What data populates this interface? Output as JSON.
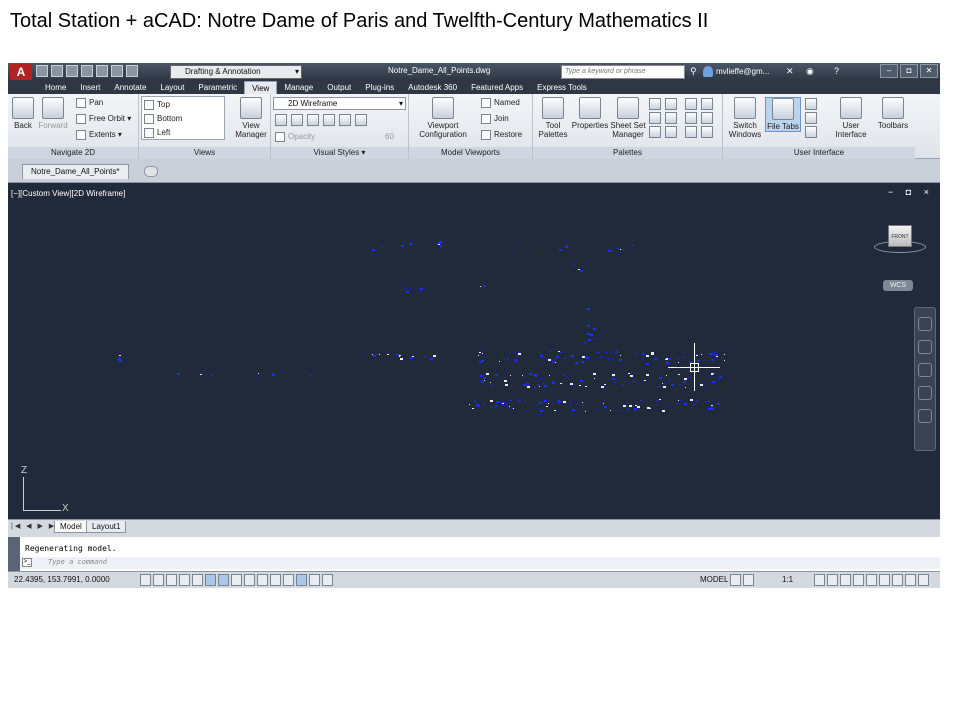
{
  "slide": {
    "title": "Total Station + aCAD: Notre Dame of Paris and Twelfth-Century Mathematics II"
  },
  "app": {
    "logo": "A",
    "workspace": "Drafting & Annotation",
    "document_title": "Notre_Dame_All_Points.dwg",
    "search_placeholder": "Type a keyword or phrase",
    "user": "mvlieffe@gm...",
    "help": "?"
  },
  "ribbon_tabs": [
    "Home",
    "Insert",
    "Annotate",
    "Layout",
    "Parametric",
    "View",
    "Manage",
    "Output",
    "Plug-ins",
    "Autodesk 360",
    "Featured Apps",
    "Express Tools"
  ],
  "active_tab": "View",
  "panels": {
    "navigate": {
      "title": "Navigate 2D",
      "back": "Back",
      "forward": "Forward",
      "pan": "Pan",
      "free_orbit": "Free Orbit",
      "extents": "Extents"
    },
    "views": {
      "title": "Views",
      "top": "Top",
      "bottom": "Bottom",
      "left": "Left",
      "view_manager_l1": "View",
      "view_manager_l2": "Manager"
    },
    "visual_styles": {
      "title": "Visual Styles",
      "style": "2D Wireframe",
      "opacity": "Opacity",
      "opacity_value": "60"
    },
    "model_viewports": {
      "title": "Model Viewports",
      "config_l1": "Viewport",
      "config_l2": "Configuration",
      "named": "Named",
      "join": "Join",
      "restore": "Restore"
    },
    "palettes": {
      "title": "Palettes",
      "tool_l1": "Tool",
      "tool_l2": "Palettes",
      "properties": "Properties",
      "sheet_l1": "Sheet Set",
      "sheet_l2": "Manager"
    },
    "user_interface": {
      "title": "User Interface",
      "switch_l1": "Switch",
      "switch_l2": "Windows",
      "file_tabs": "File Tabs",
      "ui_l1": "User",
      "ui_l2": "Interface",
      "toolbars": "Toolbars"
    }
  },
  "file_tab": "Notre_Dame_All_Points*",
  "viewport": {
    "label": "[−][Custom View][2D Wireframe]",
    "controls": "− ◘ ×",
    "cube_face": "FRONT",
    "wcs": "WCS",
    "axis_z": "Z",
    "axis_x": "X"
  },
  "layout_tabs": {
    "nav": "|◀ ◀ ▶ ▶|",
    "model": "Model",
    "layout1": "Layout1"
  },
  "command": {
    "history": "Regenerating model.",
    "placeholder": "Type a command",
    "prompt": ">_"
  },
  "status": {
    "coords": "22.4395, 153.7991, 0.0000",
    "model": "MODEL",
    "scale": "1:1"
  },
  "colors": {
    "canvas_bg": "#212a3a",
    "point_blue": "#1a2cff",
    "accent_logo": "#b22222"
  }
}
